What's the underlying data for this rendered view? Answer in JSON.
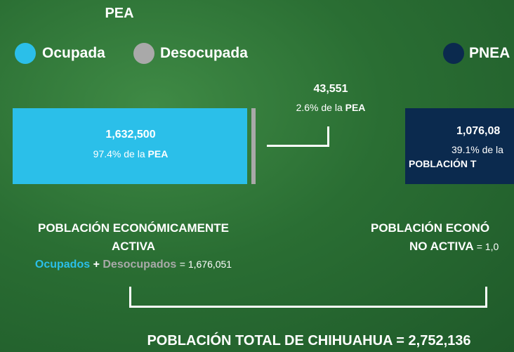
{
  "header": {
    "title": "PEA"
  },
  "legend": {
    "items": [
      {
        "label": "Ocupada"
      },
      {
        "label": "Desocupada"
      },
      {
        "label": "PNEA"
      }
    ]
  },
  "pea": {
    "ocupada": {
      "value": "1,632,500",
      "share": "97.4% de la",
      "share_strong": "PEA"
    },
    "desocupada": {
      "value": "43,551",
      "share": "2.6% de la",
      "share_strong": "PEA"
    },
    "label_line1": "POBLACIÓN ECONÓMICAMENTE",
    "label_line2": "ACTIVA",
    "formula": {
      "term1": "Ocupados",
      "plus": "+",
      "term2": "Desocupados",
      "equals": "= 1,676,051"
    }
  },
  "pnea": {
    "value": "1,076,08",
    "share": "39.1% de la",
    "share_strong": "POBLACIÓN T",
    "label_line1": "POBLACIÓN ECONÓ",
    "label_line2": "NO ACTIVA",
    "equals": "= 1,0"
  },
  "total": {
    "label": "POBLACIÓN TOTAL DE CHIHUAHUA",
    "equals": "=",
    "value": "2,752,136"
  }
}
